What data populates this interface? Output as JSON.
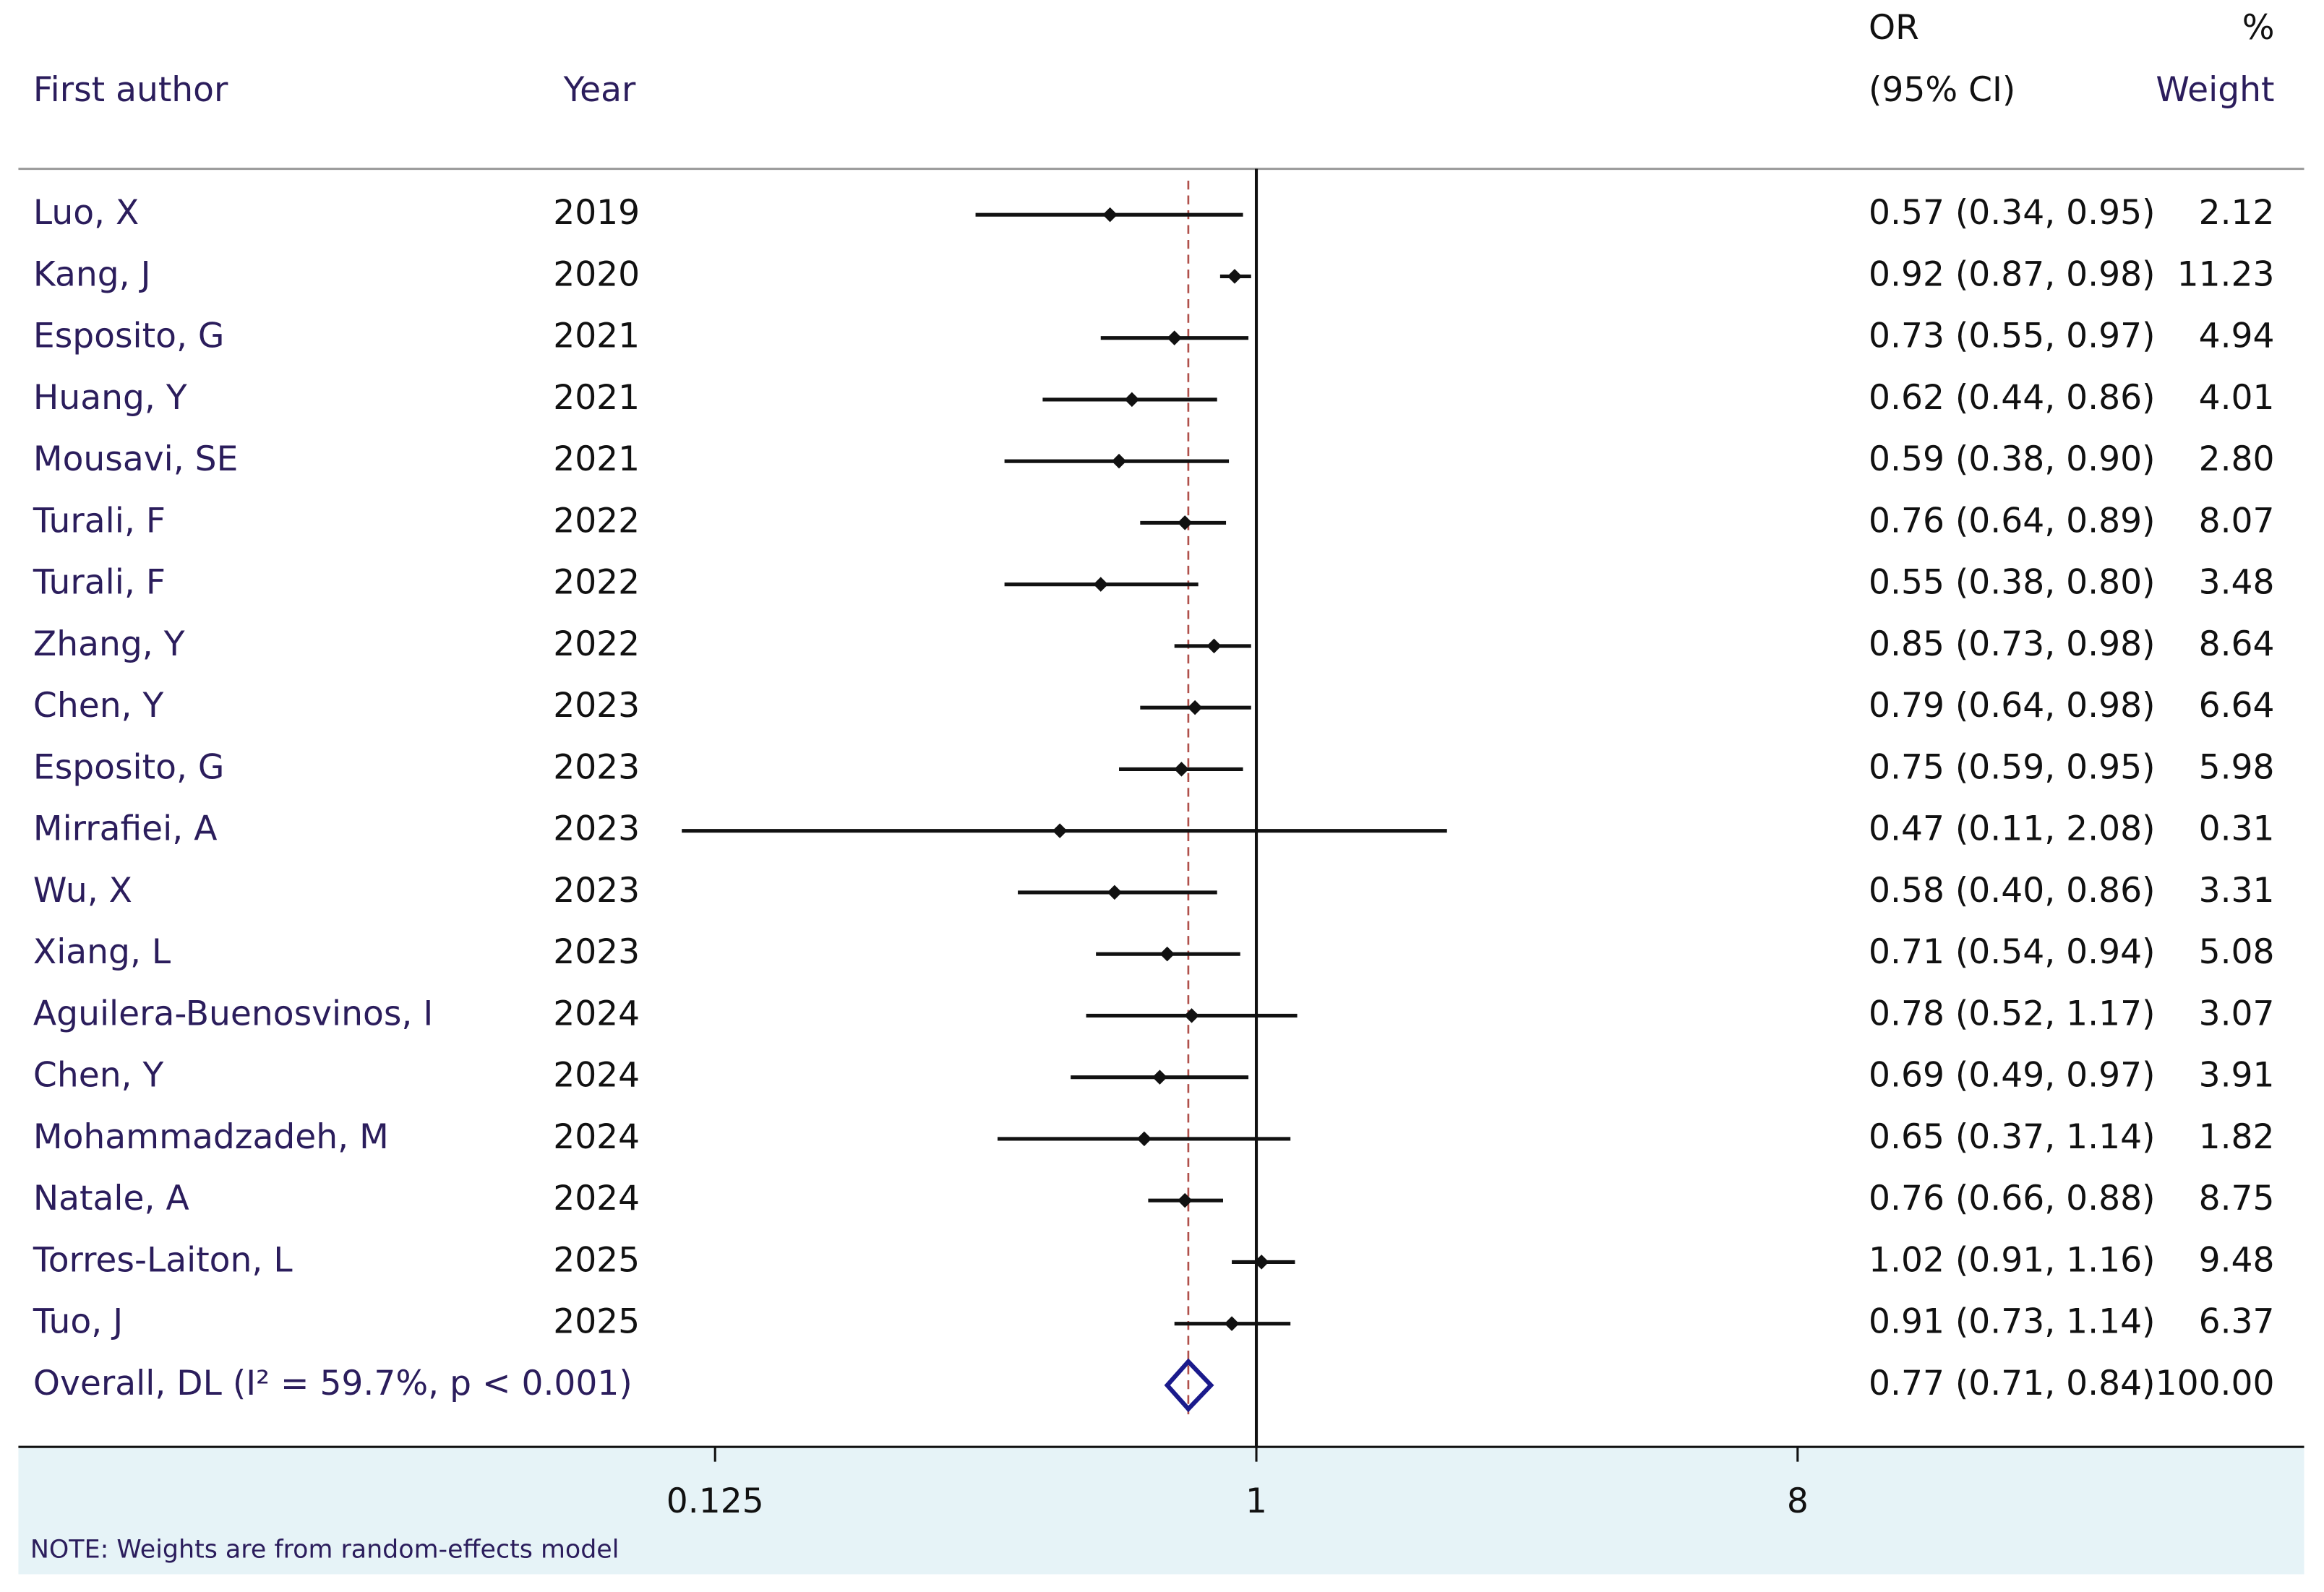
{
  "chart_data": {
    "type": "forest",
    "headers": {
      "author": "First author",
      "year": "Year",
      "or": "OR",
      "ci": "(95% CI)",
      "pct": "%",
      "weight": "Weight"
    },
    "studies": [
      {
        "author": "Luo, X",
        "year": 2019,
        "or": 0.57,
        "lower": 0.34,
        "upper": 0.95,
        "label": "0.57 (0.34, 0.95)",
        "weight": 2.12
      },
      {
        "author": "Kang, J",
        "year": 2020,
        "or": 0.92,
        "lower": 0.87,
        "upper": 0.98,
        "label": "0.92 (0.87, 0.98)",
        "weight": 11.23
      },
      {
        "author": "Esposito, G",
        "year": 2021,
        "or": 0.73,
        "lower": 0.55,
        "upper": 0.97,
        "label": "0.73 (0.55, 0.97)",
        "weight": 4.94
      },
      {
        "author": "Huang, Y",
        "year": 2021,
        "or": 0.62,
        "lower": 0.44,
        "upper": 0.86,
        "label": "0.62 (0.44, 0.86)",
        "weight": 4.01
      },
      {
        "author": "Mousavi, SE",
        "year": 2021,
        "or": 0.59,
        "lower": 0.38,
        "upper": 0.9,
        "label": "0.59 (0.38, 0.90)",
        "weight": 2.8,
        "weight_label": "2.80"
      },
      {
        "author": "Turali, F",
        "year": 2022,
        "or": 0.76,
        "lower": 0.64,
        "upper": 0.89,
        "label": "0.76 (0.64, 0.89)",
        "weight": 8.07
      },
      {
        "author": "Turali, F",
        "year": 2022,
        "or": 0.55,
        "lower": 0.38,
        "upper": 0.8,
        "label": "0.55 (0.38, 0.80)",
        "weight": 3.48
      },
      {
        "author": "Zhang, Y",
        "year": 2022,
        "or": 0.85,
        "lower": 0.73,
        "upper": 0.98,
        "label": "0.85 (0.73, 0.98)",
        "weight": 8.64
      },
      {
        "author": "Chen, Y",
        "year": 2023,
        "or": 0.79,
        "lower": 0.64,
        "upper": 0.98,
        "label": "0.79 (0.64, 0.98)",
        "weight": 6.64
      },
      {
        "author": "Esposito, G",
        "year": 2023,
        "or": 0.75,
        "lower": 0.59,
        "upper": 0.95,
        "label": "0.75 (0.59, 0.95)",
        "weight": 5.98
      },
      {
        "author": "Mirrafiei, A",
        "year": 2023,
        "or": 0.47,
        "lower": 0.11,
        "upper": 2.08,
        "label": "0.47 (0.11, 2.08)",
        "weight": 0.31
      },
      {
        "author": "Wu, X",
        "year": 2023,
        "or": 0.58,
        "lower": 0.4,
        "upper": 0.86,
        "label": "0.58 (0.40, 0.86)",
        "weight": 3.31
      },
      {
        "author": "Xiang, L",
        "year": 2023,
        "or": 0.71,
        "lower": 0.54,
        "upper": 0.94,
        "label": "0.71 (0.54, 0.94)",
        "weight": 5.08
      },
      {
        "author": "Aguilera-Buenosvinos, I",
        "year": 2024,
        "or": 0.78,
        "lower": 0.52,
        "upper": 1.17,
        "label": "0.78 (0.52, 1.17)",
        "weight": 3.07
      },
      {
        "author": "Chen, Y",
        "year": 2024,
        "or": 0.69,
        "lower": 0.49,
        "upper": 0.97,
        "label": "0.69 (0.49, 0.97)",
        "weight": 3.91
      },
      {
        "author": "Mohammadzadeh, M",
        "year": 2024,
        "or": 0.65,
        "lower": 0.37,
        "upper": 1.14,
        "label": "0.65 (0.37, 1.14)",
        "weight": 1.82
      },
      {
        "author": "Natale, A",
        "year": 2024,
        "or": 0.76,
        "lower": 0.66,
        "upper": 0.88,
        "label": "0.76 (0.66, 0.88)",
        "weight": 8.75
      },
      {
        "author": "Torres-Laiton, L",
        "year": 2025,
        "or": 1.02,
        "lower": 0.91,
        "upper": 1.16,
        "label": "1.02 (0.91, 1.16)",
        "weight": 9.48
      },
      {
        "author": "Tuo, J",
        "year": 2025,
        "or": 0.91,
        "lower": 0.73,
        "upper": 1.14,
        "label": "0.91 (0.73, 1.14)",
        "weight": 6.37
      }
    ],
    "overall": {
      "name": "Overall, DL (I² = 59.7%, p < 0.001)",
      "or": 0.77,
      "lower": 0.71,
      "upper": 0.84,
      "label": "0.77 (0.71, 0.84)",
      "weight": 100.0,
      "weight_label": "100.00"
    },
    "xlim": [
      0.0086,
      56
    ],
    "xticks": [
      0.125,
      1,
      8
    ],
    "log_scale": true,
    "reference_line": 1,
    "note": "NOTE: Weights are from random-effects model"
  }
}
